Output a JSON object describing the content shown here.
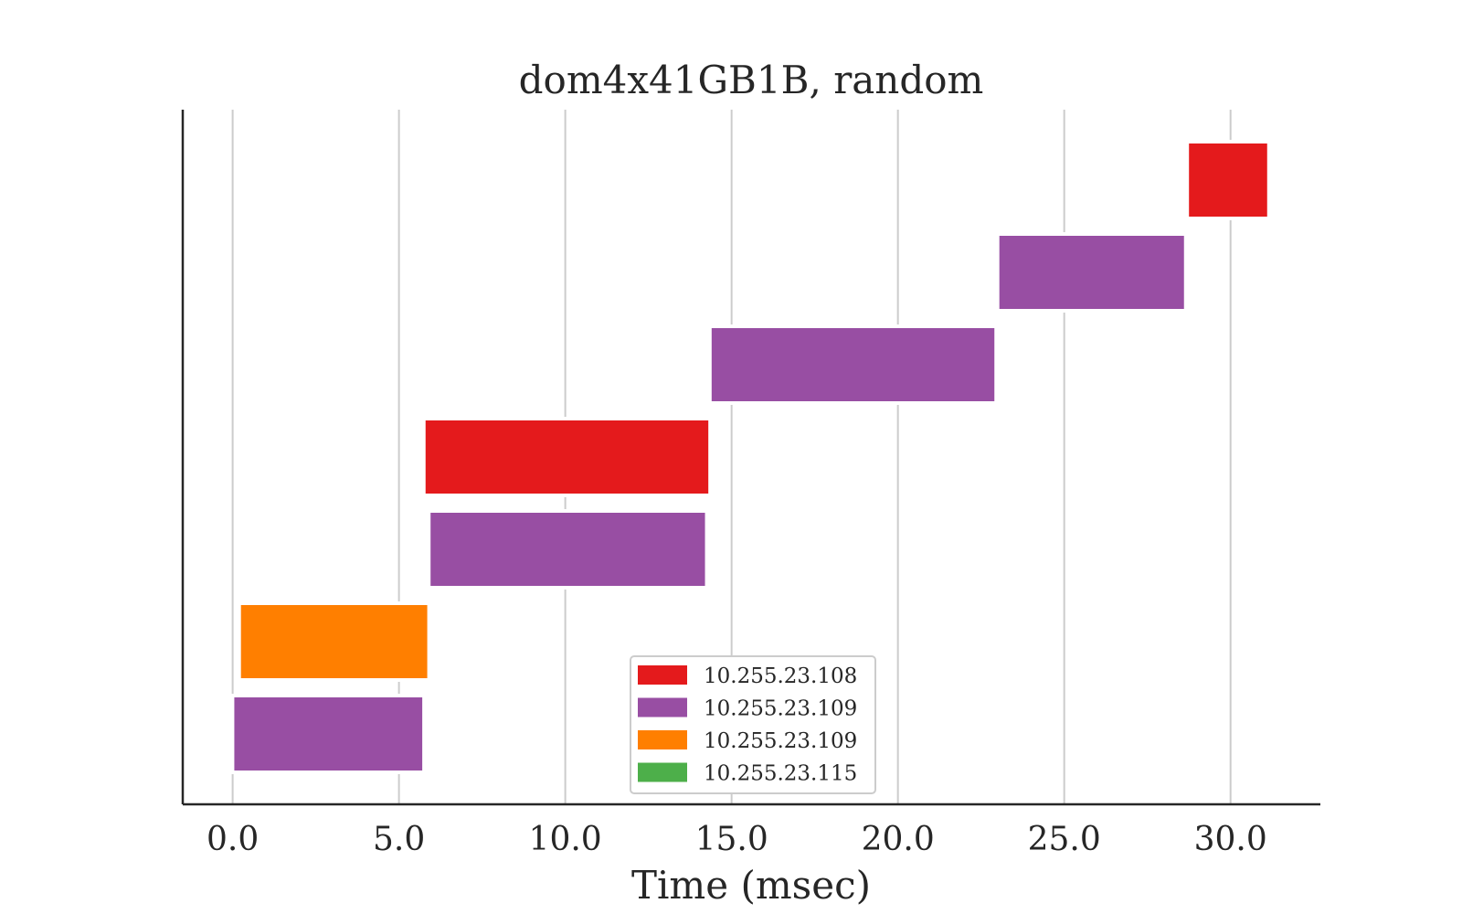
{
  "chart_data": {
    "type": "bar",
    "orientation": "horizontal",
    "style": "timeline",
    "title": "dom4x41GB1B, random",
    "xlabel": "Time (msec)",
    "ylabel": "",
    "xlim": [
      -1.5,
      32.7
    ],
    "xticks": [
      0,
      5,
      10,
      15,
      20,
      25,
      30
    ],
    "xtick_labels": [
      "0.0",
      "5.0",
      "10.0",
      "15.0",
      "20.0",
      "25.0",
      "30.0"
    ],
    "grid": "vertical",
    "legend_position": "bottom-center",
    "legend": [
      {
        "label": "10.255.23.108",
        "color": "#e41a1c"
      },
      {
        "label": "10.255.23.109",
        "color": "#984ea3"
      },
      {
        "label": "10.255.23.109",
        "color": "#ff7f00"
      },
      {
        "label": "10.255.23.115",
        "color": "#4daf4a"
      }
    ],
    "bars": [
      {
        "row": 0,
        "start": 0.05,
        "end": 5.7,
        "color": "#984ea3"
      },
      {
        "row": 1,
        "start": 0.25,
        "end": 5.85,
        "color": "#ff7f00"
      },
      {
        "row": 2,
        "start": 5.95,
        "end": 14.2,
        "color": "#984ea3"
      },
      {
        "row": 3,
        "start": 5.8,
        "end": 14.3,
        "color": "#e41a1c"
      },
      {
        "row": 4,
        "start": 14.4,
        "end": 22.9,
        "color": "#984ea3"
      },
      {
        "row": 5,
        "start": 23.05,
        "end": 28.6,
        "color": "#984ea3"
      },
      {
        "row": 6,
        "start": 28.75,
        "end": 31.1,
        "color": "#e41a1c"
      }
    ]
  }
}
